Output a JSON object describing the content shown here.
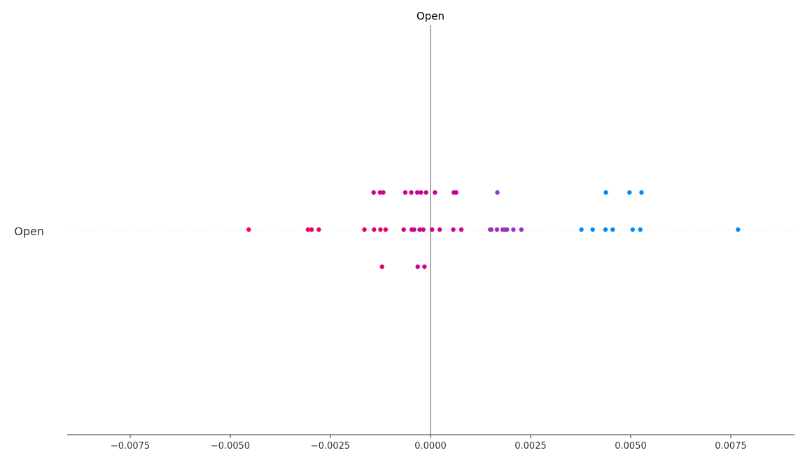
{
  "chart_data": {
    "type": "scatter",
    "title": "",
    "xlabel": "",
    "ylabel": "",
    "feature_name": "Open",
    "base_value_label": "Open",
    "base_value": 0,
    "xlim": [
      -0.009,
      0.009
    ],
    "xticks": [
      -0.0075,
      -0.005,
      -0.0025,
      0.0,
      0.0025,
      0.005,
      0.0075
    ],
    "xtick_labels": [
      "−0.0075",
      "−0.0050",
      "−0.0025",
      "0.0000",
      "0.0025",
      "0.0050",
      "0.0075"
    ],
    "grid": false,
    "legend": "none",
    "colors": {
      "high": "#ff0052",
      "mid": "#d1008f",
      "purple": "#8f3ac8",
      "low": "#008bfa",
      "base_line": "#999999"
    },
    "series": [
      {
        "row": "upper",
        "points": [
          {
            "x": -0.00142,
            "c": "#d1008f"
          },
          {
            "x": -0.00126,
            "c": "#d1008f"
          },
          {
            "x": -0.00118,
            "c": "#d1008f"
          },
          {
            "x": -0.00063,
            "c": "#d1008f"
          },
          {
            "x": -0.00048,
            "c": "#d1008f"
          },
          {
            "x": -0.00033,
            "c": "#d1008f"
          },
          {
            "x": -0.00024,
            "c": "#d1008f"
          },
          {
            "x": -0.00011,
            "c": "#d1008f"
          },
          {
            "x": 0.00011,
            "c": "#d1008f"
          },
          {
            "x": 0.00058,
            "c": "#c2009f"
          },
          {
            "x": 0.00064,
            "c": "#c2009f"
          },
          {
            "x": 0.00167,
            "c": "#8f3ac8"
          },
          {
            "x": 0.00438,
            "c": "#008bfa"
          },
          {
            "x": 0.00497,
            "c": "#008bfa"
          },
          {
            "x": 0.00527,
            "c": "#008bfa"
          }
        ]
      },
      {
        "row": "center",
        "points": [
          {
            "x": -0.00454,
            "c": "#ff0052"
          },
          {
            "x": -0.00306,
            "c": "#f00062"
          },
          {
            "x": -0.00297,
            "c": "#f00062"
          },
          {
            "x": -0.00279,
            "c": "#f00062"
          },
          {
            "x": -0.00165,
            "c": "#e30070"
          },
          {
            "x": -0.00141,
            "c": "#e30070"
          },
          {
            "x": -0.00125,
            "c": "#e30070"
          },
          {
            "x": -0.00112,
            "c": "#e30070"
          },
          {
            "x": -0.00067,
            "c": "#d1008f"
          },
          {
            "x": -0.00047,
            "c": "#d1008f"
          },
          {
            "x": -0.00041,
            "c": "#d1008f"
          },
          {
            "x": -0.00027,
            "c": "#d1008f"
          },
          {
            "x": -0.00018,
            "c": "#d1008f"
          },
          {
            "x": 4e-05,
            "c": "#d1008f"
          },
          {
            "x": 0.00023,
            "c": "#d1008f"
          },
          {
            "x": 0.00057,
            "c": "#d1008f"
          },
          {
            "x": 0.00077,
            "c": "#d1008f"
          },
          {
            "x": 0.00149,
            "c": "#a030b8"
          },
          {
            "x": 0.00152,
            "c": "#a030b8"
          },
          {
            "x": 0.00166,
            "c": "#a030b8"
          },
          {
            "x": 0.0018,
            "c": "#9a34bc"
          },
          {
            "x": 0.00186,
            "c": "#9a34bc"
          },
          {
            "x": 0.00191,
            "c": "#9a34bc"
          },
          {
            "x": 0.00207,
            "c": "#8f3ac8"
          },
          {
            "x": 0.00227,
            "c": "#8f3ac8"
          },
          {
            "x": 0.00377,
            "c": "#008bfa"
          },
          {
            "x": 0.00405,
            "c": "#008bfa"
          },
          {
            "x": 0.00437,
            "c": "#008bfa"
          },
          {
            "x": 0.00455,
            "c": "#008bfa"
          },
          {
            "x": 0.00505,
            "c": "#008bfa"
          },
          {
            "x": 0.00524,
            "c": "#008bfa"
          },
          {
            "x": 0.00768,
            "c": "#008bfa"
          }
        ]
      },
      {
        "row": "lower",
        "points": [
          {
            "x": -0.00121,
            "c": "#e30070"
          },
          {
            "x": -0.00032,
            "c": "#d1008f"
          },
          {
            "x": -0.00015,
            "c": "#d1008f"
          }
        ]
      }
    ]
  }
}
